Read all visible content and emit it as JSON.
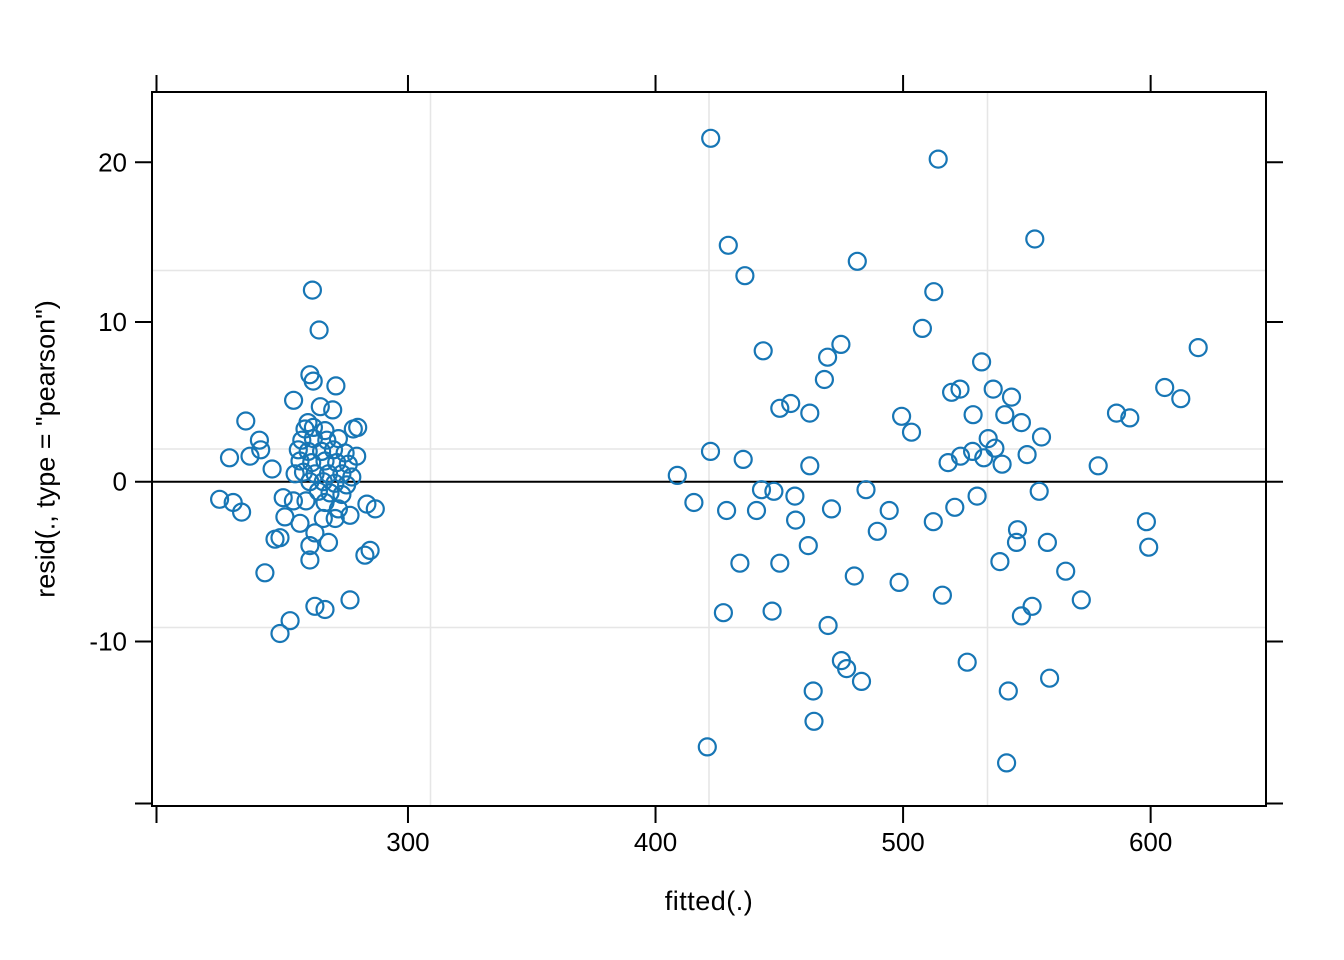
{
  "figure": {
    "background": "#ffffff"
  },
  "chart_data": {
    "type": "scatter",
    "title": "",
    "xlabel": "fitted(.)",
    "ylabel": "resid(., type = \"pearson\")",
    "xlim": [
      196.6,
      646.6
    ],
    "ylim": [
      -20.3,
      24.4
    ],
    "x_ticks": [
      300,
      400,
      500,
      600
    ],
    "y_ticks": [
      -10,
      0,
      10,
      20
    ],
    "grid": "lattice panel.grid h=3 v=3 (three evenly spaced lines each way, not aligned to ticks)",
    "legend": "none",
    "reference_line_y": 0,
    "colors": {
      "point_stroke": "#1776b5",
      "grid_line": "#e6e6e6",
      "axis": "#000000",
      "reference_line": "#000000",
      "background": "#ffffff"
    },
    "marker": "open-circle",
    "points": [
      [
        261.4,
        12.0
      ],
      [
        264.1,
        9.5
      ],
      [
        260.4,
        6.7
      ],
      [
        261.7,
        6.3
      ],
      [
        270.9,
        6.0
      ],
      [
        253.8,
        5.1
      ],
      [
        264.6,
        4.7
      ],
      [
        269.6,
        4.5
      ],
      [
        234.5,
        3.8
      ],
      [
        259.6,
        3.7
      ],
      [
        279.7,
        3.4
      ],
      [
        240.0,
        2.6
      ],
      [
        240.5,
        2.0
      ],
      [
        227.9,
        1.5
      ],
      [
        236.2,
        1.6
      ],
      [
        245.1,
        0.8
      ],
      [
        254.4,
        0.5
      ],
      [
        223.9,
        -1.1
      ],
      [
        229.4,
        -1.3
      ],
      [
        232.8,
        -1.9
      ],
      [
        249.6,
        -1.0
      ],
      [
        253.7,
        -1.2
      ],
      [
        250.3,
        -2.2
      ],
      [
        256.4,
        -2.6
      ],
      [
        265.8,
        -2.3
      ],
      [
        270.6,
        -2.3
      ],
      [
        276.6,
        -2.1
      ],
      [
        282.6,
        -4.6
      ],
      [
        284.7,
        -4.3
      ],
      [
        262.4,
        -3.2
      ],
      [
        248.3,
        -3.5
      ],
      [
        246.3,
        -3.6
      ],
      [
        260.4,
        -4.0
      ],
      [
        267.9,
        -3.8
      ],
      [
        260.4,
        -4.9
      ],
      [
        242.2,
        -5.7
      ],
      [
        262.4,
        -7.8
      ],
      [
        266.5,
        -8.0
      ],
      [
        276.6,
        -7.4
      ],
      [
        252.4,
        -8.7
      ],
      [
        248.3,
        -9.5
      ],
      [
        258.4,
        3.3
      ],
      [
        261.8,
        3.4
      ],
      [
        266.5,
        3.2
      ],
      [
        257.1,
        2.6
      ],
      [
        261.8,
        2.7
      ],
      [
        267.2,
        2.6
      ],
      [
        271.9,
        2.7
      ],
      [
        277.9,
        3.3
      ],
      [
        255.7,
        2.0
      ],
      [
        259.7,
        1.9
      ],
      [
        265.1,
        1.9
      ],
      [
        269.9,
        2.0
      ],
      [
        274.6,
        1.8
      ],
      [
        279.3,
        1.6
      ],
      [
        256.4,
        1.3
      ],
      [
        261.1,
        1.2
      ],
      [
        266.5,
        1.3
      ],
      [
        271.2,
        1.2
      ],
      [
        275.9,
        1.1
      ],
      [
        257.8,
        0.6
      ],
      [
        262.5,
        0.5
      ],
      [
        267.9,
        0.5
      ],
      [
        273.3,
        0.5
      ],
      [
        277.3,
        0.3
      ],
      [
        260.4,
        0.0
      ],
      [
        265.8,
        0.0
      ],
      [
        270.5,
        -0.1
      ],
      [
        275.2,
        -0.2
      ],
      [
        263.8,
        -0.6
      ],
      [
        268.5,
        -0.7
      ],
      [
        273.3,
        -0.8
      ],
      [
        258.8,
        -1.2
      ],
      [
        266.5,
        -1.3
      ],
      [
        271.9,
        -1.7
      ],
      [
        283.4,
        -1.4
      ],
      [
        286.8,
        -1.7
      ],
      [
        422.3,
        21.5
      ],
      [
        514.2,
        20.2
      ],
      [
        429.4,
        14.8
      ],
      [
        436.1,
        12.9
      ],
      [
        481.5,
        13.8
      ],
      [
        553.2,
        15.2
      ],
      [
        512.4,
        11.9
      ],
      [
        507.8,
        9.6
      ],
      [
        443.5,
        8.2
      ],
      [
        474.9,
        8.6
      ],
      [
        469.5,
        7.8
      ],
      [
        468.2,
        6.4
      ],
      [
        531.7,
        7.5
      ],
      [
        523.0,
        5.8
      ],
      [
        519.6,
        5.6
      ],
      [
        536.4,
        5.8
      ],
      [
        543.8,
        5.3
      ],
      [
        541.1,
        4.2
      ],
      [
        547.8,
        3.7
      ],
      [
        528.3,
        4.2
      ],
      [
        450.2,
        4.6
      ],
      [
        454.6,
        4.9
      ],
      [
        462.3,
        4.3
      ],
      [
        499.4,
        4.1
      ],
      [
        503.4,
        3.1
      ],
      [
        586.2,
        4.3
      ],
      [
        591.6,
        4.0
      ],
      [
        534.4,
        2.7
      ],
      [
        555.9,
        2.8
      ],
      [
        408.8,
        0.4
      ],
      [
        422.2,
        1.9
      ],
      [
        435.4,
        1.4
      ],
      [
        462.3,
        1.0
      ],
      [
        415.5,
        -1.3
      ],
      [
        428.7,
        -1.8
      ],
      [
        440.8,
        -1.8
      ],
      [
        442.8,
        -0.5
      ],
      [
        447.8,
        -0.6
      ],
      [
        456.3,
        -0.9
      ],
      [
        456.6,
        -2.4
      ],
      [
        471.1,
        -1.7
      ],
      [
        485.0,
        -0.5
      ],
      [
        489.6,
        -3.1
      ],
      [
        494.4,
        -1.8
      ],
      [
        512.2,
        -2.5
      ],
      [
        520.9,
        -1.6
      ],
      [
        529.9,
        -0.9
      ],
      [
        555.0,
        -0.6
      ],
      [
        578.8,
        1.0
      ],
      [
        461.7,
        -4.0
      ],
      [
        434.1,
        -5.1
      ],
      [
        450.2,
        -5.1
      ],
      [
        480.3,
        -5.9
      ],
      [
        498.4,
        -6.3
      ],
      [
        515.9,
        -7.1
      ],
      [
        539.1,
        -5.0
      ],
      [
        545.8,
        -3.8
      ],
      [
        546.2,
        -3.0
      ],
      [
        558.3,
        -3.8
      ],
      [
        565.7,
        -5.6
      ],
      [
        572.0,
        -7.4
      ],
      [
        547.8,
        -8.4
      ],
      [
        552.1,
        -7.8
      ],
      [
        427.4,
        -8.2
      ],
      [
        447.1,
        -8.1
      ],
      [
        469.7,
        -9.0
      ],
      [
        475.1,
        -11.2
      ],
      [
        477.2,
        -11.7
      ],
      [
        483.2,
        -12.5
      ],
      [
        463.7,
        -13.1
      ],
      [
        464.0,
        -15.0
      ],
      [
        420.9,
        -16.6
      ],
      [
        525.9,
        -11.3
      ],
      [
        542.5,
        -13.1
      ],
      [
        541.8,
        -17.6
      ],
      [
        559.2,
        -12.3
      ],
      [
        518.2,
        1.2
      ],
      [
        523.2,
        1.6
      ],
      [
        528.1,
        1.9
      ],
      [
        532.6,
        1.5
      ],
      [
        540.0,
        1.1
      ],
      [
        537.1,
        2.1
      ],
      [
        550.1,
        1.7
      ],
      [
        619.2,
        8.4
      ],
      [
        605.7,
        5.9
      ],
      [
        612.2,
        5.2
      ],
      [
        598.3,
        -2.5
      ],
      [
        599.2,
        -4.1
      ]
    ]
  }
}
